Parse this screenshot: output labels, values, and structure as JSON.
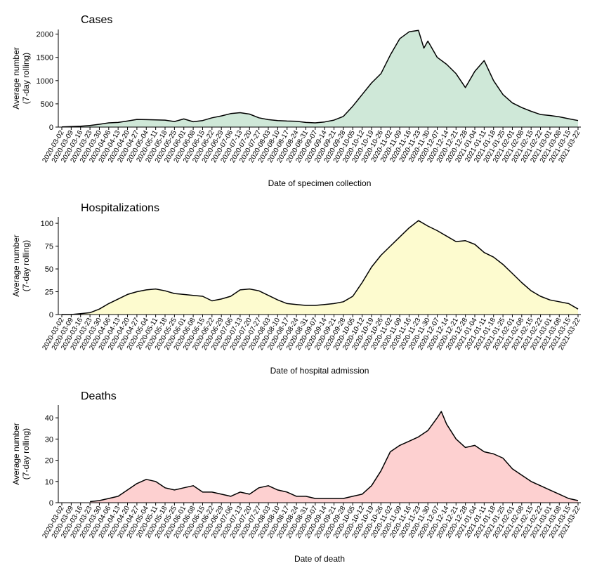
{
  "chart_data": [
    {
      "type": "area",
      "title": "Cases",
      "xlabel": "Date of specimen collection",
      "ylabel": [
        "Average number",
        "(7-day rolling)"
      ],
      "fill": "#cfe8d8",
      "line": "#000000",
      "ylim": [
        0,
        2100
      ],
      "yticks": [
        0,
        500,
        1000,
        1500,
        2000
      ],
      "x_ticks": [
        "2020-03-02",
        "2020-03-09",
        "2020-03-16",
        "2020-03-23",
        "2020-03-30",
        "2020-04-06",
        "2020-04-13",
        "2020-04-20",
        "2020-04-27",
        "2020-05-04",
        "2020-05-11",
        "2020-05-18",
        "2020-05-25",
        "2020-06-01",
        "2020-06-08",
        "2020-06-15",
        "2020-06-22",
        "2020-06-29",
        "2020-07-06",
        "2020-07-13",
        "2020-07-20",
        "2020-07-27",
        "2020-08-03",
        "2020-08-10",
        "2020-08-17",
        "2020-08-24",
        "2020-08-31",
        "2020-09-07",
        "2020-09-14",
        "2020-09-21",
        "2020-09-28",
        "2020-10-05",
        "2020-10-12",
        "2020-10-19",
        "2020-10-26",
        "2020-11-02",
        "2020-11-09",
        "2020-11-16",
        "2020-11-23",
        "2020-11-30",
        "2020-12-07",
        "2020-12-14",
        "2020-12-21",
        "2020-12-28",
        "2021-01-04",
        "2021-01-11",
        "2021-01-18",
        "2021-01-25",
        "2021-02-01",
        "2021-02-08",
        "2021-02-15",
        "2021-02-22",
        "2021-03-01",
        "2021-03-08",
        "2021-03-15",
        "2021-03-22"
      ],
      "series": [
        {
          "x": [
            "2020-03-02",
            "2020-03-09",
            "2020-03-16",
            "2020-03-23",
            "2020-03-30",
            "2020-04-06",
            "2020-04-13",
            "2020-04-20",
            "2020-04-27",
            "2020-05-04",
            "2020-05-11",
            "2020-05-18",
            "2020-05-25",
            "2020-06-01",
            "2020-06-08",
            "2020-06-15",
            "2020-06-22",
            "2020-06-29",
            "2020-07-06",
            "2020-07-13",
            "2020-07-20",
            "2020-07-27",
            "2020-08-03",
            "2020-08-10",
            "2020-08-17",
            "2020-08-24",
            "2020-08-31",
            "2020-09-07",
            "2020-09-14",
            "2020-09-21",
            "2020-09-28",
            "2020-10-05",
            "2020-10-12",
            "2020-10-19",
            "2020-10-26",
            "2020-11-02",
            "2020-11-09",
            "2020-11-16",
            "2020-11-23",
            "2020-11-27",
            "2020-11-30",
            "2020-12-07",
            "2020-12-14",
            "2020-12-21",
            "2020-12-28",
            "2021-01-04",
            "2021-01-11",
            "2021-01-18",
            "2021-01-25",
            "2021-02-01",
            "2021-02-08",
            "2021-02-15",
            "2021-02-22",
            "2021-03-01",
            "2021-03-08",
            "2021-03-15",
            "2021-03-22"
          ],
          "y": [
            5,
            10,
            20,
            35,
            60,
            90,
            100,
            130,
            165,
            160,
            155,
            150,
            120,
            175,
            115,
            140,
            200,
            240,
            290,
            310,
            280,
            200,
            160,
            140,
            130,
            125,
            100,
            90,
            110,
            150,
            230,
            450,
            700,
            950,
            1150,
            1550,
            1900,
            2050,
            2080,
            1700,
            1850,
            1500,
            1350,
            1150,
            850,
            1200,
            1430,
            1000,
            700,
            520,
            420,
            340,
            270,
            250,
            220,
            180,
            140
          ]
        }
      ]
    },
    {
      "type": "area",
      "title": "Hospitalizations",
      "xlabel": "Date of hospital admission",
      "ylabel": [
        "Average number",
        "(7-day rolling)"
      ],
      "fill": "#fdfbcf",
      "line": "#000000",
      "ylim": [
        0,
        107
      ],
      "yticks": [
        0,
        25,
        50,
        75,
        100
      ],
      "x_ticks": [
        "2020-03-02",
        "2020-03-09",
        "2020-03-16",
        "2020-03-23",
        "2020-03-30",
        "2020-04-06",
        "2020-04-13",
        "2020-04-20",
        "2020-04-27",
        "2020-05-04",
        "2020-05-11",
        "2020-05-18",
        "2020-05-25",
        "2020-06-01",
        "2020-06-08",
        "2020-06-15",
        "2020-06-22",
        "2020-06-29",
        "2020-07-06",
        "2020-07-13",
        "2020-07-20",
        "2020-07-27",
        "2020-08-03",
        "2020-08-10",
        "2020-08-17",
        "2020-08-24",
        "2020-08-31",
        "2020-09-07",
        "2020-09-14",
        "2020-09-21",
        "2020-09-28",
        "2020-10-05",
        "2020-10-12",
        "2020-10-19",
        "2020-10-26",
        "2020-11-02",
        "2020-11-09",
        "2020-11-16",
        "2020-11-23",
        "2020-11-30",
        "2020-12-07",
        "2020-12-14",
        "2020-12-21",
        "2020-12-28",
        "2021-01-04",
        "2021-01-11",
        "2021-01-18",
        "2021-01-25",
        "2021-02-01",
        "2021-02-08",
        "2021-02-15",
        "2021-02-22",
        "2021-03-01",
        "2021-03-08",
        "2021-03-15",
        "2021-03-22"
      ],
      "series": [
        {
          "x": [
            "2020-03-02",
            "2020-03-09",
            "2020-03-16",
            "2020-03-23",
            "2020-03-30",
            "2020-04-06",
            "2020-04-13",
            "2020-04-20",
            "2020-04-27",
            "2020-05-04",
            "2020-05-11",
            "2020-05-18",
            "2020-05-25",
            "2020-06-01",
            "2020-06-08",
            "2020-06-15",
            "2020-06-22",
            "2020-06-29",
            "2020-07-06",
            "2020-07-13",
            "2020-07-20",
            "2020-07-27",
            "2020-08-03",
            "2020-08-10",
            "2020-08-17",
            "2020-08-24",
            "2020-08-31",
            "2020-09-07",
            "2020-09-14",
            "2020-09-21",
            "2020-09-28",
            "2020-10-05",
            "2020-10-12",
            "2020-10-19",
            "2020-10-26",
            "2020-11-02",
            "2020-11-09",
            "2020-11-16",
            "2020-11-23",
            "2020-11-30",
            "2020-12-07",
            "2020-12-14",
            "2020-12-21",
            "2020-12-28",
            "2021-01-04",
            "2021-01-11",
            "2021-01-18",
            "2021-01-25",
            "2021-02-01",
            "2021-02-08",
            "2021-02-15",
            "2021-02-22",
            "2021-03-01",
            "2021-03-08",
            "2021-03-15",
            "2021-03-22"
          ],
          "y": [
            0,
            0,
            1,
            2,
            6,
            12,
            17,
            22,
            25,
            27,
            28,
            26,
            23,
            22,
            21,
            20,
            15,
            17,
            20,
            27,
            28,
            26,
            21,
            16,
            12,
            11,
            10,
            10,
            11,
            12,
            14,
            20,
            35,
            52,
            65,
            75,
            85,
            95,
            103,
            97,
            92,
            86,
            80,
            81,
            77,
            68,
            63,
            55,
            45,
            35,
            26,
            20,
            16,
            14,
            12,
            6
          ]
        }
      ]
    },
    {
      "type": "area",
      "title": "Deaths",
      "xlabel": "Date of death",
      "ylabel": [
        "Average number",
        "(7-day rolling)"
      ],
      "fill": "#fdd0d0",
      "line": "#000000",
      "ylim": [
        0,
        46
      ],
      "yticks": [
        0,
        10,
        20,
        30,
        40
      ],
      "x_ticks": [
        "2020-03-02",
        "2020-03-09",
        "2020-03-16",
        "2020-03-23",
        "2020-03-30",
        "2020-04-06",
        "2020-04-13",
        "2020-04-20",
        "2020-04-27",
        "2020-05-04",
        "2020-05-11",
        "2020-05-18",
        "2020-05-25",
        "2020-06-01",
        "2020-06-08",
        "2020-06-15",
        "2020-06-22",
        "2020-06-29",
        "2020-07-06",
        "2020-07-13",
        "2020-07-20",
        "2020-07-27",
        "2020-08-03",
        "2020-08-10",
        "2020-08-17",
        "2020-08-24",
        "2020-08-31",
        "2020-09-07",
        "2020-09-14",
        "2020-09-21",
        "2020-09-28",
        "2020-10-05",
        "2020-10-12",
        "2020-10-19",
        "2020-10-26",
        "2020-11-02",
        "2020-11-09",
        "2020-11-16",
        "2020-11-23",
        "2020-11-30",
        "2020-12-07",
        "2020-12-14",
        "2020-12-21",
        "2020-12-28",
        "2021-01-04",
        "2021-01-11",
        "2021-01-18",
        "2021-01-25",
        "2021-02-01",
        "2021-02-08",
        "2021-02-15",
        "2021-02-22",
        "2021-03-01",
        "2021-03-08",
        "2021-03-15",
        "2021-03-22"
      ],
      "series": [
        {
          "x": [
            "2020-03-23",
            "2020-03-30",
            "2020-04-06",
            "2020-04-13",
            "2020-04-20",
            "2020-04-27",
            "2020-05-04",
            "2020-05-11",
            "2020-05-18",
            "2020-05-25",
            "2020-06-01",
            "2020-06-08",
            "2020-06-15",
            "2020-06-22",
            "2020-06-29",
            "2020-07-06",
            "2020-07-13",
            "2020-07-20",
            "2020-07-27",
            "2020-08-03",
            "2020-08-10",
            "2020-08-17",
            "2020-08-24",
            "2020-08-31",
            "2020-09-07",
            "2020-09-14",
            "2020-09-21",
            "2020-09-28",
            "2020-10-05",
            "2020-10-12",
            "2020-10-19",
            "2020-10-26",
            "2020-11-02",
            "2020-11-09",
            "2020-11-16",
            "2020-11-23",
            "2020-11-30",
            "2020-12-07",
            "2020-12-10",
            "2020-12-14",
            "2020-12-21",
            "2020-12-28",
            "2021-01-04",
            "2021-01-11",
            "2021-01-18",
            "2021-01-25",
            "2021-02-01",
            "2021-02-08",
            "2021-02-15",
            "2021-02-22",
            "2021-03-01",
            "2021-03-08",
            "2021-03-15",
            "2021-03-22"
          ],
          "y": [
            0.5,
            1,
            2,
            3,
            6,
            9,
            11,
            10,
            7,
            6,
            7,
            8,
            5,
            5,
            4,
            3,
            5,
            4,
            7,
            8,
            6,
            5,
            3,
            3,
            2,
            2,
            2,
            2,
            3,
            4,
            8,
            15,
            24,
            27,
            29,
            31,
            34,
            40,
            43,
            37,
            30,
            26,
            27,
            24,
            23,
            21,
            16,
            13,
            10,
            8,
            6,
            4,
            2,
            1
          ]
        }
      ]
    }
  ]
}
